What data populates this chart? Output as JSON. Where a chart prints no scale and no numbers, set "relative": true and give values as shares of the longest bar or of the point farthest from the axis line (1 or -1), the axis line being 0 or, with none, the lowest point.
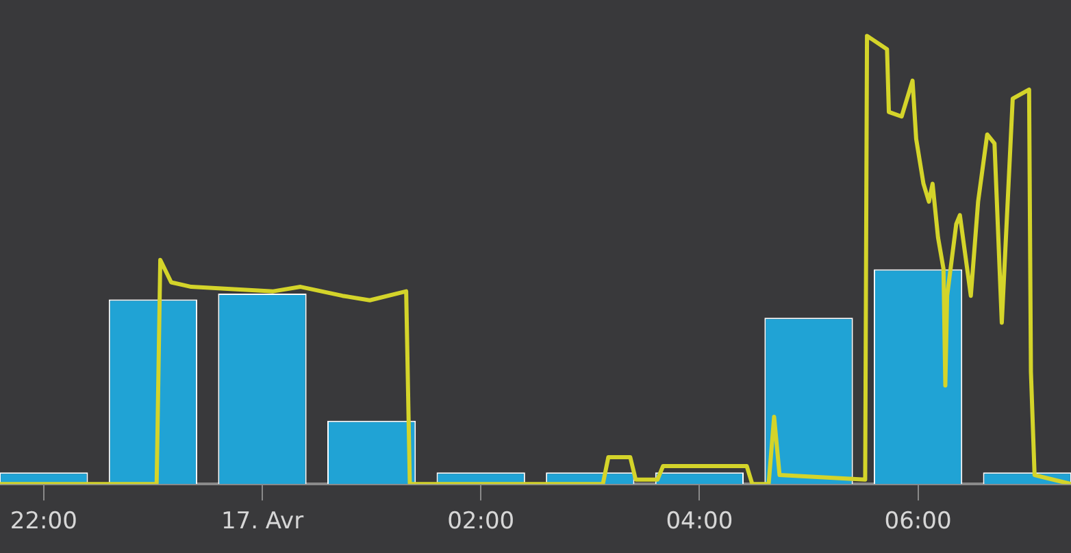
{
  "chart_data": {
    "type": "bar",
    "relative": true,
    "legend": false,
    "marker": "none",
    "x": [
      "--04-16T22:00",
      "--04-16T23:00",
      "--04-17T00:00",
      "--04-17T01:00",
      "--04-17T02:00",
      "--04-17T03:00",
      "--04-17T04:00",
      "--04-17T05:00",
      "--04-17T06:00",
      "--04-17T07:00"
    ],
    "xlim": [
      "--04-16T21:36",
      "--04-17T07:24"
    ],
    "xticks": [
      {
        "value": "--04-16T22:00",
        "label": "22:00"
      },
      {
        "value": "--04-17T00:00",
        "label": "17. Avr"
      },
      {
        "value": "--04-17T02:00",
        "label": "02:00"
      },
      {
        "value": "--04-17T04:00",
        "label": "04:00"
      },
      {
        "value": "--04-17T06:00",
        "label": "06:00"
      }
    ],
    "series": [
      {
        "color": "#20a3d5",
        "values": [
          0.026,
          0.412,
          0.425,
          0.141,
          0.026,
          0.026,
          0.026,
          0.371,
          0.479,
          0.026
        ]
      },
      {
        "type": "line",
        "color": "#d4d42a",
        "line_style": "solid",
        "x": [
          "--04-16T21:36",
          "--04-16T23:02",
          "--04-16T23:04",
          "--04-16T23:10",
          "--04-16T23:21",
          "--04-17T00:06",
          "--04-17T00:21",
          "--04-17T00:44",
          "--04-17T00:59",
          "--04-17T01:19",
          "--04-17T01:21",
          "--04-17T03:07",
          "--04-17T03:10",
          "--04-17T03:22",
          "--04-17T03:25",
          "--04-17T03:37",
          "--04-17T03:40",
          "--04-17T04:26",
          "--04-17T04:29",
          "--04-17T04:38",
          "--04-17T04:41",
          "--04-17T04:44",
          "--04-17T05:31",
          "--04-17T05:32",
          "--04-17T05:43",
          "--04-17T05:44",
          "--04-17T05:51",
          "--04-17T05:57",
          "--04-17T05:59",
          "--04-17T06:03",
          "--04-17T06:06",
          "--04-17T06:08",
          "--04-17T06:11",
          "--04-17T06:14",
          "--04-17T06:15",
          "--04-17T06:16",
          "--04-17T06:21",
          "--04-17T06:23",
          "--04-17T06:29",
          "--04-17T06:33",
          "--04-17T06:38",
          "--04-17T06:42",
          "--04-17T06:46",
          "--04-17T06:52",
          "--04-17T07:01",
          "--04-17T07:02",
          "--04-17T07:04",
          "--04-17T07:24"
        ],
        "values": [
          0,
          0,
          0.5,
          0.45,
          0.44,
          0.43,
          0.44,
          0.42,
          0.41,
          0.43,
          0,
          0,
          0.06,
          0.06,
          0.01,
          0.01,
          0.04,
          0.04,
          0,
          0,
          0.15,
          0.02,
          0.01,
          1.0,
          0.97,
          0.83,
          0.82,
          0.9,
          0.77,
          0.67,
          0.63,
          0.67,
          0.55,
          0.48,
          0.22,
          0.42,
          0.58,
          0.6,
          0.42,
          0.63,
          0.78,
          0.76,
          0.36,
          0.86,
          0.88,
          0.25,
          0.02,
          0
        ]
      }
    ]
  }
}
